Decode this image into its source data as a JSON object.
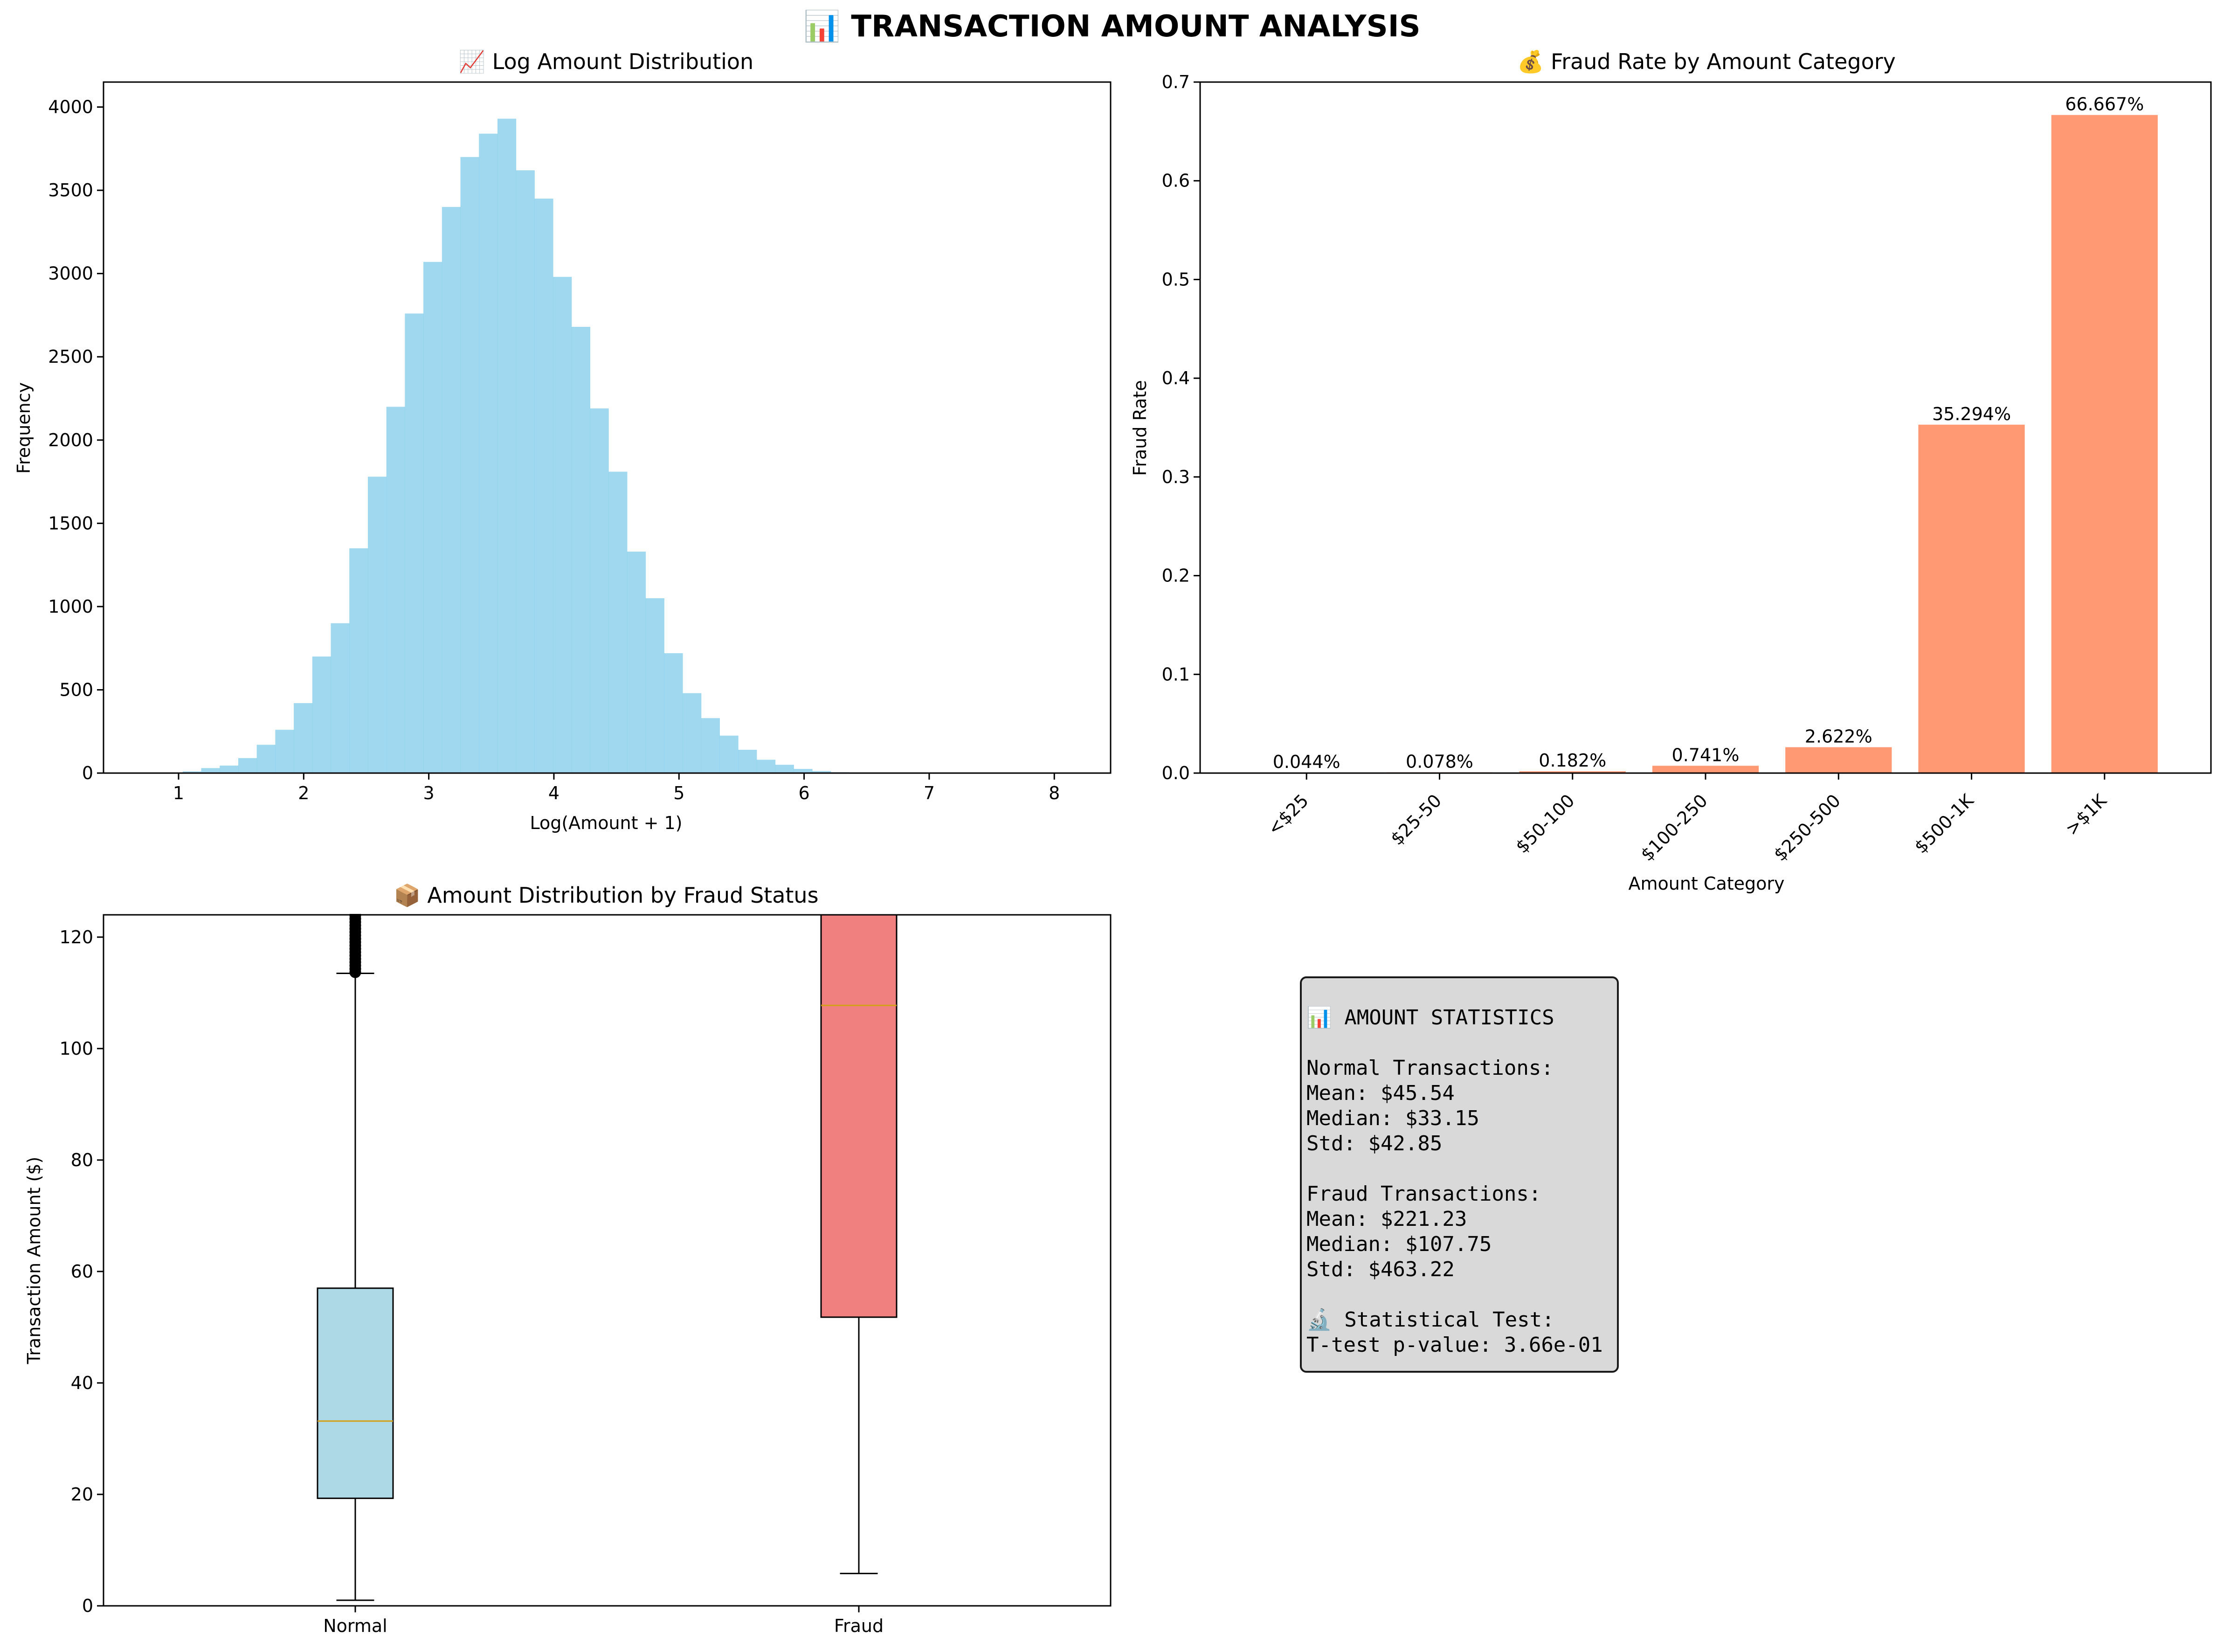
{
  "figure": {
    "title": "📊 TRANSACTION AMOUNT ANALYSIS"
  },
  "chart_data": [
    {
      "type": "bar",
      "subtype": "histogram",
      "title": "📈 Log Amount Distribution",
      "xlabel": "Log(Amount + 1)",
      "ylabel": "Frequency",
      "xlim": [
        0.4,
        8.45
      ],
      "ylim": [
        0,
        4150
      ],
      "xticks": [
        1,
        2,
        3,
        4,
        5,
        6,
        7,
        8
      ],
      "yticks": [
        0,
        500,
        1000,
        1500,
        2000,
        2500,
        3000,
        3500,
        4000
      ],
      "bin_width": 0.148,
      "bins_start": [
        0.885,
        1.033,
        1.181,
        1.329,
        1.477,
        1.625,
        1.773,
        1.921,
        2.069,
        2.217,
        2.365,
        2.513,
        2.661,
        2.809,
        2.957,
        3.105,
        3.253,
        3.401,
        3.549,
        3.697,
        3.845,
        3.993,
        4.141,
        4.289,
        4.437,
        4.585,
        4.733,
        4.881,
        5.029,
        5.177,
        5.325,
        5.473,
        5.621,
        5.769,
        5.917,
        6.065,
        6.213,
        6.361,
        6.509,
        6.657,
        6.805,
        6.953,
        7.101,
        7.249,
        7.397,
        7.545,
        7.693,
        7.841,
        7.989,
        8.137
      ],
      "values": [
        3,
        10,
        30,
        45,
        90,
        170,
        260,
        420,
        700,
        900,
        1350,
        1780,
        2200,
        2760,
        3070,
        3400,
        3700,
        3840,
        3930,
        3620,
        3450,
        2980,
        2680,
        2190,
        1810,
        1330,
        1050,
        720,
        480,
        330,
        225,
        140,
        80,
        50,
        25,
        12,
        5,
        3,
        2,
        1,
        1,
        1,
        1,
        1,
        1,
        1,
        0,
        0,
        0,
        1
      ],
      "color": "#87ceeb"
    },
    {
      "type": "bar",
      "title": "💰 Fraud Rate by Amount Category",
      "xlabel": "Amount Category",
      "ylabel": "Fraud Rate",
      "ylim": [
        0,
        0.7
      ],
      "yticks": [
        0.0,
        0.1,
        0.2,
        0.3,
        0.4,
        0.5,
        0.6,
        0.7
      ],
      "categories": [
        "<$25",
        "$25-50",
        "$50-100",
        "$100-250",
        "$250-500",
        "$500-1K",
        ">$1K"
      ],
      "values": [
        0.00044,
        0.00078,
        0.00182,
        0.00741,
        0.02622,
        0.35294,
        0.66667
      ],
      "data_labels": [
        "0.044%",
        "0.078%",
        "0.182%",
        "0.741%",
        "2.622%",
        "35.294%",
        "66.667%"
      ],
      "color": "#ff7f50"
    },
    {
      "type": "box",
      "title": "📦 Amount Distribution by Fraud Status",
      "xlabel": "",
      "ylabel": "Transaction Amount ($)",
      "ylim": [
        0,
        124
      ],
      "yticks": [
        0,
        20,
        40,
        60,
        80,
        100,
        120
      ],
      "categories": [
        "Normal",
        "Fraud"
      ],
      "series": [
        {
          "name": "Normal",
          "whisker_low": 1,
          "q1": 19.3,
          "median": 33.15,
          "q3": 57,
          "whisker_high": 113.5,
          "outliers_above": true,
          "color": "#add8e6"
        },
        {
          "name": "Fraud",
          "whisker_low": 5.8,
          "q1": 51.8,
          "median": 107.75,
          "q3": 124,
          "whisker_high": 124,
          "outliers_above": false,
          "color": "#f08080"
        }
      ]
    }
  ],
  "stats_box": {
    "lines": [
      "📊 AMOUNT STATISTICS",
      "",
      "Normal Transactions:",
      "Mean: $45.54",
      "Median: $33.15",
      "Std: $42.85",
      "",
      "Fraud Transactions:",
      "Mean: $221.23",
      "Median: $107.75",
      "Std: $463.22",
      "",
      "🔬 Statistical Test:",
      "T-test p-value: 3.66e-01"
    ]
  }
}
